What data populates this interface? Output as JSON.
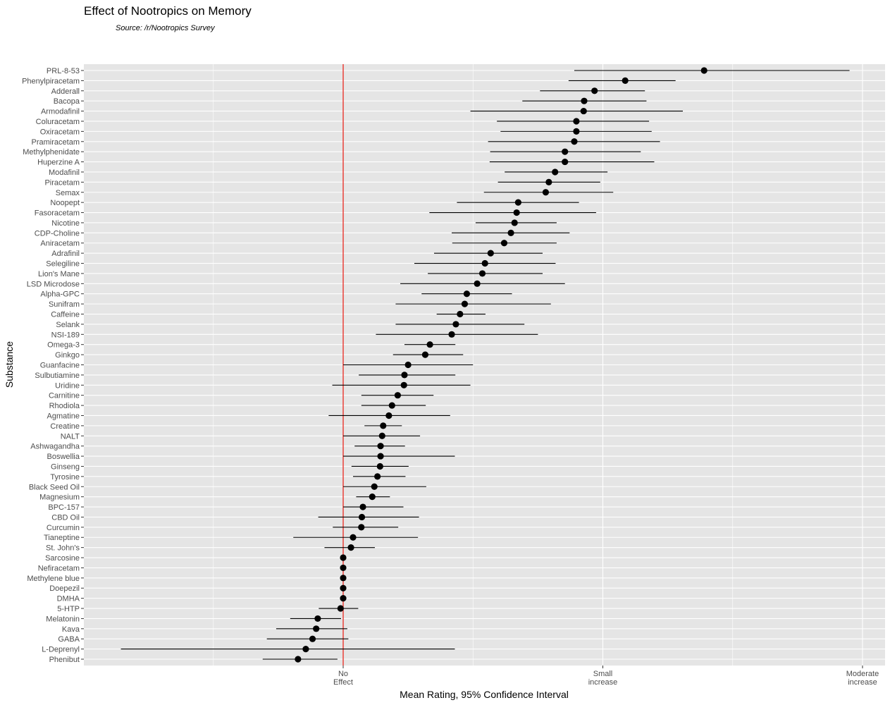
{
  "chart_data": {
    "type": "dot-errorbar",
    "title": "Effect of Nootropics on Memory",
    "subtitle": "Source: /r/Nootropics Survey",
    "xlabel": "Mean Rating, 95% Confidence Interval",
    "ylabel": "Substance",
    "xlim": [
      -1,
      1
    ],
    "x_ticks": [
      {
        "value": 0,
        "label": [
          "No",
          "Effect"
        ]
      },
      {
        "value": 0.5,
        "label": [
          "Small",
          "increase"
        ]
      },
      {
        "value": 1,
        "label": [
          "Moderate",
          "increase"
        ]
      }
    ],
    "reference_line": {
      "value": 0,
      "color": "#e8271f"
    },
    "grid": true,
    "point_color": "#000000",
    "panel_color": "#e5e5e5",
    "substances": [
      {
        "name": "PRL-8-53",
        "mean": 0.695,
        "lo": 0.445,
        "hi": 0.975
      },
      {
        "name": "Phenylpiracetam",
        "mean": 0.543,
        "lo": 0.434,
        "hi": 0.64
      },
      {
        "name": "Adderall",
        "mean": 0.484,
        "lo": 0.379,
        "hi": 0.581
      },
      {
        "name": "Bacopa",
        "mean": 0.464,
        "lo": 0.345,
        "hi": 0.584
      },
      {
        "name": "Armodafinil",
        "mean": 0.463,
        "lo": 0.245,
        "hi": 0.654
      },
      {
        "name": "Coluracetam",
        "mean": 0.449,
        "lo": 0.296,
        "hi": 0.589
      },
      {
        "name": "Oxiracetam",
        "mean": 0.449,
        "lo": 0.303,
        "hi": 0.594
      },
      {
        "name": "Pramiracetam",
        "mean": 0.445,
        "lo": 0.279,
        "hi": 0.61
      },
      {
        "name": "Methylphenidate",
        "mean": 0.427,
        "lo": 0.283,
        "hi": 0.573
      },
      {
        "name": "Huperzine A",
        "mean": 0.427,
        "lo": 0.282,
        "hi": 0.599
      },
      {
        "name": "Modafinil",
        "mean": 0.408,
        "lo": 0.311,
        "hi": 0.509
      },
      {
        "name": "Piracetam",
        "mean": 0.396,
        "lo": 0.298,
        "hi": 0.495
      },
      {
        "name": "Semax",
        "mean": 0.39,
        "lo": 0.271,
        "hi": 0.52
      },
      {
        "name": "Noopept",
        "mean": 0.337,
        "lo": 0.219,
        "hi": 0.454
      },
      {
        "name": "Fasoracetam",
        "mean": 0.334,
        "lo": 0.166,
        "hi": 0.487
      },
      {
        "name": "Nicotine",
        "mean": 0.33,
        "lo": 0.255,
        "hi": 0.411
      },
      {
        "name": "CDP-Choline",
        "mean": 0.323,
        "lo": 0.209,
        "hi": 0.436
      },
      {
        "name": "Aniracetam",
        "mean": 0.31,
        "lo": 0.21,
        "hi": 0.411
      },
      {
        "name": "Adrafinil",
        "mean": 0.284,
        "lo": 0.175,
        "hi": 0.384
      },
      {
        "name": "Selegiline",
        "mean": 0.273,
        "lo": 0.137,
        "hi": 0.409
      },
      {
        "name": "Lion's Mane",
        "mean": 0.268,
        "lo": 0.163,
        "hi": 0.384
      },
      {
        "name": "LSD Microdose",
        "mean": 0.258,
        "lo": 0.11,
        "hi": 0.427
      },
      {
        "name": "Alpha-GPC",
        "mean": 0.238,
        "lo": 0.151,
        "hi": 0.325
      },
      {
        "name": "Sunifram",
        "mean": 0.234,
        "lo": 0.101,
        "hi": 0.4
      },
      {
        "name": "Caffeine",
        "mean": 0.225,
        "lo": 0.18,
        "hi": 0.274
      },
      {
        "name": "Selank",
        "mean": 0.217,
        "lo": 0.101,
        "hi": 0.349
      },
      {
        "name": "NSI-189",
        "mean": 0.209,
        "lo": 0.063,
        "hi": 0.375
      },
      {
        "name": "Omega-3",
        "mean": 0.167,
        "lo": 0.118,
        "hi": 0.216
      },
      {
        "name": "Ginkgo",
        "mean": 0.158,
        "lo": 0.096,
        "hi": 0.231
      },
      {
        "name": "Guanfacine",
        "mean": 0.125,
        "lo": 0.0,
        "hi": 0.25
      },
      {
        "name": "Sulbutiamine",
        "mean": 0.118,
        "lo": 0.03,
        "hi": 0.216
      },
      {
        "name": "Uridine",
        "mean": 0.117,
        "lo": -0.021,
        "hi": 0.245
      },
      {
        "name": "Carnitine",
        "mean": 0.105,
        "lo": 0.035,
        "hi": 0.174
      },
      {
        "name": "Rhodiola",
        "mean": 0.094,
        "lo": 0.035,
        "hi": 0.159
      },
      {
        "name": "Agmatine",
        "mean": 0.088,
        "lo": -0.028,
        "hi": 0.206
      },
      {
        "name": "Creatine",
        "mean": 0.077,
        "lo": 0.041,
        "hi": 0.113
      },
      {
        "name": "NALT",
        "mean": 0.075,
        "lo": 0.0,
        "hi": 0.148
      },
      {
        "name": "Ashwagandha",
        "mean": 0.072,
        "lo": 0.022,
        "hi": 0.119
      },
      {
        "name": "Boswellia",
        "mean": 0.072,
        "lo": 0.0,
        "hi": 0.215
      },
      {
        "name": "Ginseng",
        "mean": 0.071,
        "lo": 0.016,
        "hi": 0.126
      },
      {
        "name": "Tyrosine",
        "mean": 0.066,
        "lo": 0.019,
        "hi": 0.12
      },
      {
        "name": "Black Seed Oil",
        "mean": 0.06,
        "lo": 0.0,
        "hi": 0.16
      },
      {
        "name": "Magnesium",
        "mean": 0.056,
        "lo": 0.025,
        "hi": 0.09
      },
      {
        "name": "BPC-157",
        "mean": 0.038,
        "lo": 0.0,
        "hi": 0.116
      },
      {
        "name": "CBD Oil",
        "mean": 0.036,
        "lo": -0.048,
        "hi": 0.146
      },
      {
        "name": "Curcumin",
        "mean": 0.035,
        "lo": -0.02,
        "hi": 0.106
      },
      {
        "name": "Tianeptine",
        "mean": 0.019,
        "lo": -0.096,
        "hi": 0.144
      },
      {
        "name": "St. John's",
        "mean": 0.015,
        "lo": -0.036,
        "hi": 0.061
      },
      {
        "name": "Sarcosine",
        "mean": 0.0,
        "lo": 0.0,
        "hi": 0.0
      },
      {
        "name": "Nefiracetam",
        "mean": 0.0,
        "lo": 0.0,
        "hi": 0.0
      },
      {
        "name": "Methylene blue",
        "mean": 0.0,
        "lo": 0.0,
        "hi": 0.0
      },
      {
        "name": "Doepezil",
        "mean": 0.0,
        "lo": 0.0,
        "hi": 0.0
      },
      {
        "name": "DMHA",
        "mean": 0.0,
        "lo": 0.0,
        "hi": 0.0
      },
      {
        "name": "5-HTP",
        "mean": -0.005,
        "lo": -0.047,
        "hi": 0.029
      },
      {
        "name": "Melatonin",
        "mean": -0.049,
        "lo": -0.102,
        "hi": -0.004
      },
      {
        "name": "Kava",
        "mean": -0.052,
        "lo": -0.129,
        "hi": 0.008
      },
      {
        "name": "GABA",
        "mean": -0.059,
        "lo": -0.147,
        "hi": 0.01
      },
      {
        "name": "L-Deprenyl",
        "mean": -0.072,
        "lo": -0.428,
        "hi": 0.215
      },
      {
        "name": "Phenibut",
        "mean": -0.087,
        "lo": -0.155,
        "hi": -0.011
      }
    ]
  }
}
